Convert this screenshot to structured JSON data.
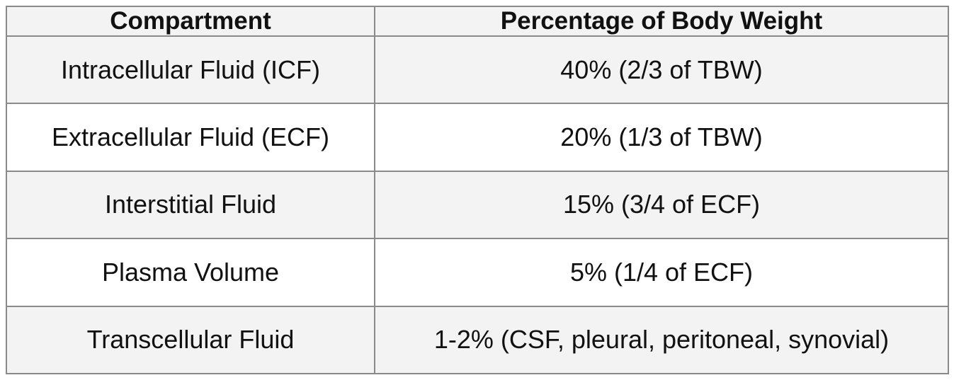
{
  "table": {
    "header": [
      "Compartment",
      "Percentage of Body Weight"
    ],
    "rows": [
      [
        "Intracellular Fluid (ICF)",
        "40% (2/3 of TBW)"
      ],
      [
        "Extracellular Fluid (ECF)",
        "20% (1/3 of TBW)"
      ],
      [
        "Interstitial Fluid",
        "15% (3/4 of ECF)"
      ],
      [
        "Plasma Volume",
        "5% (1/4 of ECF)"
      ],
      [
        "Transcellular Fluid",
        "1-2% (CSF, pleural, peritoneal, synovial)"
      ]
    ]
  }
}
